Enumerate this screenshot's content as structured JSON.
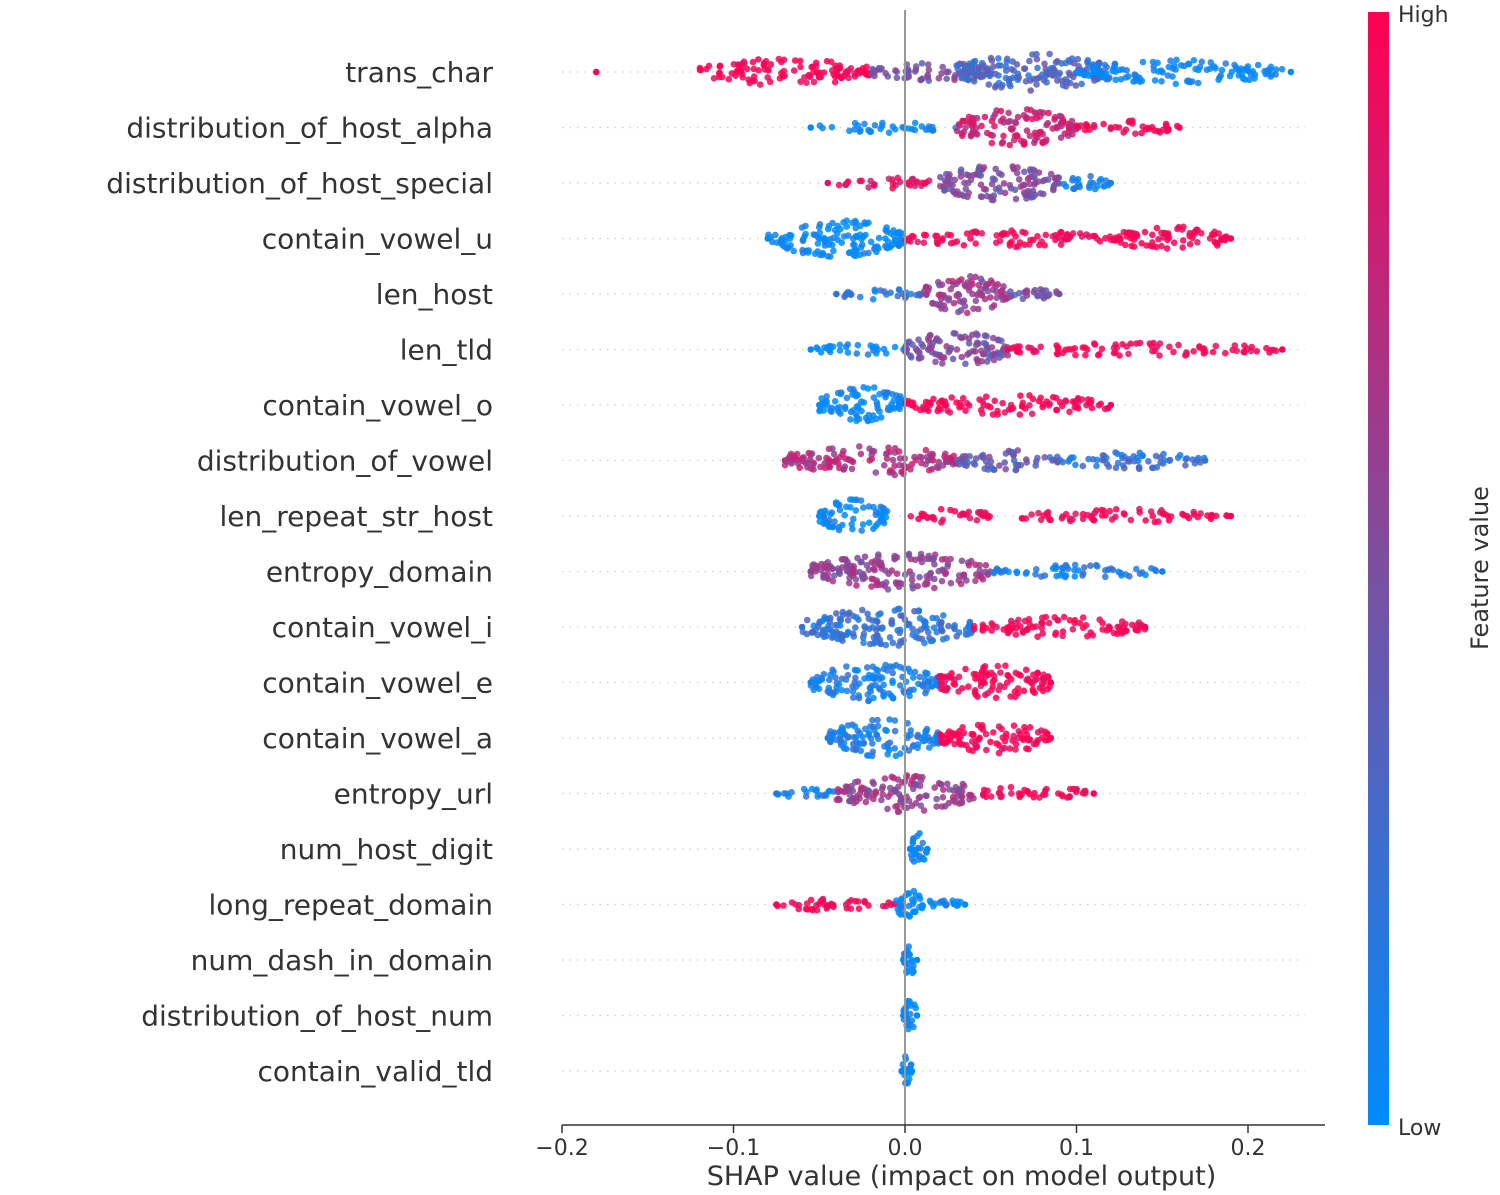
{
  "chart_data": {
    "type": "scatter",
    "subtype": "shap-beeswarm",
    "title": "",
    "xlabel": "SHAP value (impact on model output)",
    "ylabel": "",
    "xlim": [
      -0.2,
      0.24
    ],
    "xticks": [
      -0.2,
      -0.1,
      0.0,
      0.1,
      0.2
    ],
    "xtick_labels": [
      "−0.2",
      "−0.1",
      "0.0",
      "0.1",
      "0.2"
    ],
    "zero_line": 0.0,
    "colorbar": {
      "title": "Feature value",
      "high_label": "High",
      "low_label": "Low",
      "high_color": "#ff0052",
      "mid_color": "#7b4fa0",
      "low_color": "#008bfb"
    },
    "colors": {
      "axis": "#333333",
      "zero_line": "#999999",
      "guide_dots": "#cccccc"
    },
    "features": [
      {
        "name": "trans_char",
        "range": [
          -0.18,
          0.225
        ],
        "clusters": [
          [
            -0.12,
            -0.02,
            0.7,
            1.0
          ],
          [
            -0.02,
            0.05,
            0.5,
            0.5
          ],
          [
            0.03,
            0.12,
            1.0,
            0.3
          ],
          [
            0.1,
            0.22,
            0.6,
            0.0
          ]
        ]
      },
      {
        "name": "distribution_of_host_alpha",
        "range": [
          -0.055,
          0.16
        ],
        "clusters": [
          [
            -0.05,
            0.03,
            0.2,
            0.0
          ],
          [
            0.03,
            0.1,
            1.0,
            0.8
          ],
          [
            0.1,
            0.16,
            0.3,
            1.0
          ]
        ]
      },
      {
        "name": "distribution_of_host_special",
        "range": [
          -0.045,
          0.12
        ],
        "clusters": [
          [
            -0.04,
            0.02,
            0.2,
            0.9
          ],
          [
            0.02,
            0.09,
            1.0,
            0.5
          ],
          [
            0.09,
            0.12,
            0.3,
            0.1
          ]
        ]
      },
      {
        "name": "contain_vowel_u",
        "range": [
          -0.08,
          0.19
        ],
        "clusters": [
          [
            -0.08,
            0.0,
            1.0,
            0.0
          ],
          [
            0.0,
            0.12,
            0.4,
            1.0
          ],
          [
            0.12,
            0.19,
            0.6,
            1.0
          ]
        ]
      },
      {
        "name": "len_host",
        "range": [
          -0.04,
          0.09
        ],
        "clusters": [
          [
            -0.04,
            0.01,
            0.2,
            0.2
          ],
          [
            0.01,
            0.06,
            1.0,
            0.6
          ],
          [
            0.06,
            0.09,
            0.3,
            0.5
          ]
        ]
      },
      {
        "name": "len_tld",
        "range": [
          -0.055,
          0.22
        ],
        "clusters": [
          [
            -0.055,
            0.0,
            0.2,
            0.0
          ],
          [
            0.0,
            0.06,
            1.0,
            0.5
          ],
          [
            0.06,
            0.22,
            0.3,
            1.0
          ]
        ]
      },
      {
        "name": "contain_vowel_o",
        "range": [
          -0.05,
          0.12
        ],
        "clusters": [
          [
            -0.05,
            0.0,
            1.0,
            0.0
          ],
          [
            0.0,
            0.12,
            0.5,
            1.0
          ]
        ]
      },
      {
        "name": "distribution_of_vowel",
        "range": [
          -0.07,
          0.175
        ],
        "clusters": [
          [
            -0.07,
            0.03,
            0.8,
            0.7
          ],
          [
            0.03,
            0.09,
            0.5,
            0.4
          ],
          [
            0.09,
            0.175,
            0.4,
            0.2
          ]
        ]
      },
      {
        "name": "len_repeat_str_host",
        "range": [
          -0.05,
          0.19
        ],
        "clusters": [
          [
            -0.05,
            -0.01,
            0.9,
            0.0
          ],
          [
            0.0,
            0.05,
            0.3,
            1.0
          ],
          [
            0.065,
            0.19,
            0.3,
            1.0
          ]
        ]
      },
      {
        "name": "entropy_domain",
        "range": [
          -0.055,
          0.15
        ],
        "clusters": [
          [
            -0.055,
            0.05,
            1.0,
            0.6
          ],
          [
            0.05,
            0.15,
            0.3,
            0.1
          ]
        ]
      },
      {
        "name": "contain_vowel_i",
        "range": [
          -0.06,
          0.14
        ],
        "clusters": [
          [
            -0.06,
            0.04,
            1.0,
            0.2
          ],
          [
            0.04,
            0.14,
            0.5,
            1.0
          ]
        ]
      },
      {
        "name": "contain_vowel_e",
        "range": [
          -0.055,
          0.085
        ],
        "clusters": [
          [
            -0.055,
            0.02,
            1.0,
            0.1
          ],
          [
            0.02,
            0.085,
            0.9,
            1.0
          ]
        ]
      },
      {
        "name": "contain_vowel_a",
        "range": [
          -0.045,
          0.085
        ],
        "clusters": [
          [
            -0.045,
            0.02,
            1.0,
            0.1
          ],
          [
            0.02,
            0.085,
            0.8,
            1.0
          ]
        ]
      },
      {
        "name": "entropy_url",
        "range": [
          -0.075,
          0.11
        ],
        "clusters": [
          [
            -0.075,
            -0.04,
            0.15,
            0.1
          ],
          [
            -0.04,
            0.04,
            1.0,
            0.6
          ],
          [
            0.04,
            0.11,
            0.3,
            1.0
          ]
        ]
      },
      {
        "name": "num_host_digit",
        "range": [
          0.003,
          0.013
        ],
        "clusters": [
          [
            0.003,
            0.013,
            0.9,
            0.0
          ]
        ]
      },
      {
        "name": "long_repeat_domain",
        "range": [
          -0.075,
          0.035
        ],
        "clusters": [
          [
            -0.075,
            -0.005,
            0.3,
            1.0
          ],
          [
            -0.005,
            0.01,
            0.8,
            0.0
          ],
          [
            0.01,
            0.035,
            0.2,
            0.0
          ]
        ]
      },
      {
        "name": "num_dash_in_domain",
        "range": [
          -0.001,
          0.007
        ],
        "clusters": [
          [
            -0.001,
            0.007,
            0.8,
            0.0
          ]
        ]
      },
      {
        "name": "distribution_of_host_num",
        "range": [
          -0.001,
          0.007
        ],
        "clusters": [
          [
            -0.001,
            0.007,
            0.8,
            0.0
          ]
        ]
      },
      {
        "name": "contain_valid_tld",
        "range": [
          -0.002,
          0.004
        ],
        "clusters": [
          [
            -0.002,
            0.004,
            0.8,
            0.0
          ]
        ]
      }
    ]
  }
}
